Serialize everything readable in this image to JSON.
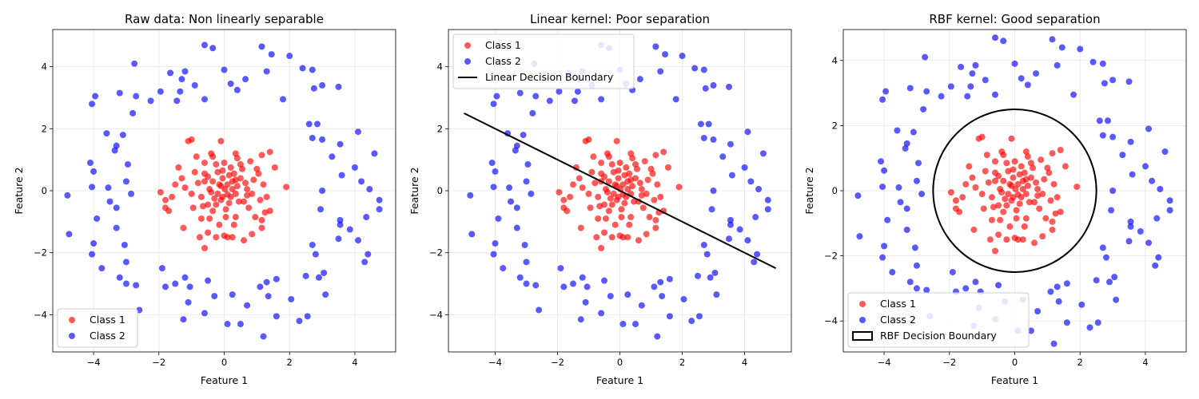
{
  "colors": {
    "class1": "#ff0000",
    "class2": "#0000ff",
    "boundary": "#000000",
    "grid": "#e6e6e6"
  },
  "legend_labels": {
    "class1": "Class 1",
    "class2": "Class 2"
  },
  "class1_points": [
    [
      0.02,
      0.05
    ],
    [
      0.1,
      -0.12
    ],
    [
      -0.15,
      0.2
    ],
    [
      0.25,
      0.3
    ],
    [
      -0.3,
      -0.25
    ],
    [
      0.35,
      -0.1
    ],
    [
      -0.05,
      0.4
    ],
    [
      0.4,
      0.15
    ],
    [
      -0.45,
      0.05
    ],
    [
      0.15,
      -0.4
    ],
    [
      0.3,
      0.55
    ],
    [
      -0.5,
      -0.45
    ],
    [
      0.6,
      -0.35
    ],
    [
      -0.2,
      0.6
    ],
    [
      0.5,
      0.4
    ],
    [
      -0.6,
      0.3
    ],
    [
      0.05,
      -0.6
    ],
    [
      -0.35,
      -0.65
    ],
    [
      0.7,
      0.05
    ],
    [
      -0.1,
      -0.3
    ],
    [
      0.0,
      0.9
    ],
    [
      0.2,
      0.75
    ],
    [
      -0.25,
      0.85
    ],
    [
      0.55,
      0.7
    ],
    [
      -0.6,
      0.55
    ],
    [
      -0.8,
      0.25
    ],
    [
      0.75,
      -0.55
    ],
    [
      0.35,
      -0.85
    ],
    [
      -0.45,
      -0.9
    ],
    [
      0.1,
      -1.5
    ],
    [
      -0.1,
      1.6
    ],
    [
      0.9,
      0.35
    ],
    [
      -1.0,
      -0.1
    ],
    [
      1.1,
      -0.3
    ],
    [
      -0.9,
      0.6
    ],
    [
      0.95,
      -0.85
    ],
    [
      -0.7,
      -0.9
    ],
    [
      1.2,
      0.2
    ],
    [
      -1.2,
      0.1
    ],
    [
      0.8,
      0.95
    ],
    [
      -0.85,
      1.1
    ],
    [
      -0.4,
      1.2
    ],
    [
      0.4,
      1.05
    ],
    [
      1.15,
      1.15
    ],
    [
      -1.1,
      1.6
    ],
    [
      -1.0,
      1.65
    ],
    [
      1.4,
      1.25
    ],
    [
      -1.4,
      0.75
    ],
    [
      1.55,
      0.75
    ],
    [
      1.25,
      -0.7
    ],
    [
      -1.25,
      -1.2
    ],
    [
      0.25,
      -1.5
    ],
    [
      -0.25,
      -1.5
    ],
    [
      0.0,
      -1.45
    ],
    [
      -0.5,
      -1.35
    ],
    [
      0.85,
      -1.4
    ],
    [
      -0.6,
      -1.85
    ],
    [
      1.15,
      -0.95
    ],
    [
      -0.65,
      -0.5
    ],
    [
      -1.3,
      0.4
    ],
    [
      1.9,
      0.12
    ],
    [
      -1.95,
      -0.05
    ],
    [
      -1.8,
      -0.55
    ],
    [
      -1.8,
      -0.3
    ],
    [
      1.4,
      -0.65
    ],
    [
      -1.6,
      -0.2
    ],
    [
      1.0,
      0.7
    ],
    [
      0.7,
      -0.15
    ],
    [
      -0.15,
      -1.1
    ],
    [
      0.6,
      -1.6
    ],
    [
      -0.75,
      -1.5
    ],
    [
      1.3,
      -0.2
    ],
    [
      -1.7,
      -0.65
    ],
    [
      1.15,
      -1.2
    ],
    [
      -1.5,
      0.2
    ],
    [
      0.35,
      1.2
    ],
    [
      -0.35,
      1.1
    ],
    [
      0.1,
      0.2
    ],
    [
      -0.2,
      -0.1
    ],
    [
      0.2,
      -0.2
    ],
    [
      -0.1,
      0.15
    ],
    [
      0.45,
      -0.35
    ],
    [
      -0.5,
      0.45
    ],
    [
      0.15,
      0.5
    ],
    [
      -0.25,
      -0.45
    ],
    [
      0.65,
      0.25
    ],
    [
      -0.7,
      -0.2
    ],
    [
      0.05,
      -0.85
    ],
    [
      -0.05,
      0.65
    ],
    [
      0.85,
      -0.1
    ],
    [
      -0.95,
      -0.55
    ],
    [
      1.05,
      0.55
    ],
    [
      0.3,
      -1.1
    ],
    [
      -0.6,
      0.9
    ],
    [
      0.5,
      0.85
    ],
    [
      -0.35,
      0.3
    ],
    [
      0.25,
      0.05
    ],
    [
      -0.05,
      -0.2
    ],
    [
      0.35,
      0.35
    ],
    [
      -0.4,
      -0.05
    ]
  ],
  "class2_points": [
    [
      -4.8,
      -0.15
    ],
    [
      -4.75,
      -1.4
    ],
    [
      -4.1,
      0.9
    ],
    [
      -4.0,
      0.62
    ],
    [
      -3.9,
      -0.9
    ],
    [
      -4.0,
      -1.7
    ],
    [
      -4.05,
      -2.05
    ],
    [
      -3.75,
      -2.5
    ],
    [
      -3.95,
      3.05
    ],
    [
      -4.05,
      2.8
    ],
    [
      -3.6,
      1.85
    ],
    [
      -3.55,
      0.1
    ],
    [
      -3.5,
      -0.35
    ],
    [
      -3.35,
      1.3
    ],
    [
      -3.3,
      1.45
    ],
    [
      -3.3,
      -0.55
    ],
    [
      -3.3,
      -1.2
    ],
    [
      -3.2,
      -2.8
    ],
    [
      -3.2,
      3.15
    ],
    [
      -3.1,
      1.8
    ],
    [
      -3.05,
      -1.75
    ],
    [
      -3.0,
      -2.3
    ],
    [
      -3.0,
      0.3
    ],
    [
      -3.0,
      -3.0
    ],
    [
      -2.95,
      0.85
    ],
    [
      -2.8,
      2.5
    ],
    [
      -2.75,
      4.1
    ],
    [
      -2.7,
      3.05
    ],
    [
      -2.7,
      -3.05
    ],
    [
      -2.6,
      -3.85
    ],
    [
      -2.25,
      2.9
    ],
    [
      -1.95,
      3.2
    ],
    [
      -1.9,
      -2.5
    ],
    [
      -1.8,
      -3.1
    ],
    [
      -1.65,
      3.8
    ],
    [
      -1.5,
      -3.0
    ],
    [
      -1.45,
      2.9
    ],
    [
      -1.35,
      3.2
    ],
    [
      -1.3,
      3.6
    ],
    [
      -1.2,
      3.85
    ],
    [
      -1.2,
      -2.8
    ],
    [
      -1.25,
      -4.15
    ],
    [
      -1.1,
      -3.6
    ],
    [
      -0.6,
      -3.95
    ],
    [
      -0.5,
      -2.9
    ],
    [
      -0.6,
      4.7
    ],
    [
      -0.35,
      4.6
    ],
    [
      -0.3,
      -3.4
    ],
    [
      -0.6,
      2.95
    ],
    [
      0.0,
      3.9
    ],
    [
      0.1,
      -4.3
    ],
    [
      0.2,
      3.45
    ],
    [
      0.25,
      -3.35
    ],
    [
      0.4,
      3.25
    ],
    [
      0.5,
      -4.3
    ],
    [
      0.65,
      3.6
    ],
    [
      0.7,
      -3.7
    ],
    [
      1.1,
      -3.1
    ],
    [
      1.15,
      4.65
    ],
    [
      1.3,
      -2.95
    ],
    [
      1.3,
      3.85
    ],
    [
      1.35,
      -3.4
    ],
    [
      1.45,
      4.4
    ],
    [
      1.6,
      -4.05
    ],
    [
      1.6,
      -2.85
    ],
    [
      1.8,
      2.95
    ],
    [
      2.05,
      -3.5
    ],
    [
      2.0,
      4.35
    ],
    [
      2.3,
      -4.2
    ],
    [
      2.4,
      3.95
    ],
    [
      2.5,
      -2.75
    ],
    [
      2.55,
      -4.05
    ],
    [
      2.6,
      2.15
    ],
    [
      2.7,
      1.7
    ],
    [
      2.7,
      3.9
    ],
    [
      2.75,
      3.3
    ],
    [
      2.7,
      -1.75
    ],
    [
      2.8,
      -2.05
    ],
    [
      2.85,
      2.15
    ],
    [
      2.9,
      -2.8
    ],
    [
      3.0,
      3.4
    ],
    [
      3.0,
      1.65
    ],
    [
      3.0,
      0.0
    ],
    [
      3.05,
      -2.65
    ],
    [
      3.1,
      -3.35
    ],
    [
      3.3,
      1.1
    ],
    [
      3.5,
      3.35
    ],
    [
      3.5,
      -1.55
    ],
    [
      3.55,
      1.5
    ],
    [
      3.55,
      -0.95
    ],
    [
      3.6,
      0.5
    ],
    [
      3.55,
      -1.1
    ],
    [
      3.85,
      -1.25
    ],
    [
      4.0,
      0.75
    ],
    [
      4.1,
      1.9
    ],
    [
      4.1,
      -1.6
    ],
    [
      4.2,
      0.3
    ],
    [
      4.3,
      -2.3
    ],
    [
      4.45,
      0.05
    ],
    [
      4.4,
      -2.05
    ],
    [
      4.6,
      1.2
    ],
    [
      4.75,
      -0.3
    ],
    [
      4.75,
      -0.6
    ],
    [
      -4.05,
      0.12
    ],
    [
      4.35,
      -0.85
    ],
    [
      1.2,
      -4.7
    ],
    [
      -1.05,
      -3.1
    ],
    [
      -2.85,
      -0.1
    ],
    [
      2.95,
      -0.6
    ],
    [
      -0.9,
      3.4
    ]
  ],
  "panels": [
    {
      "title": "Raw data: Non linearly separable",
      "xlabel": "Feature 1",
      "ylabel": "Feature 2",
      "xlim": [
        -5.25,
        5.25
      ],
      "ylim": [
        -5.2,
        5.2
      ],
      "xticks": [
        -4,
        -2,
        0,
        2,
        4
      ],
      "yticks": [
        -4,
        -2,
        0,
        2,
        4
      ],
      "tick_labels_x": [
        "−4",
        "−2",
        "0",
        "2",
        "4"
      ],
      "tick_labels_y": [
        "−4",
        "−2",
        "0",
        "2",
        "4"
      ],
      "boundary": null,
      "legend": {
        "placement": "lower-left",
        "items": [
          "Class 1",
          "Class 2"
        ]
      }
    },
    {
      "title": "Linear kernel: Poor separation",
      "xlabel": "Feature 1",
      "ylabel": "Feature 2",
      "xlim": [
        -5.5,
        5.5
      ],
      "ylim": [
        -5.2,
        5.2
      ],
      "xticks": [
        -4,
        -2,
        0,
        2,
        4
      ],
      "yticks": [
        -4,
        -2,
        0,
        2,
        4
      ],
      "tick_labels_x": [
        "−4",
        "−2",
        "0",
        "2",
        "4"
      ],
      "tick_labels_y": [
        "−4",
        "−2",
        "0",
        "2",
        "4"
      ],
      "boundary": {
        "type": "line",
        "x": [
          -5,
          5
        ],
        "y": [
          2.5,
          -2.5
        ],
        "label": "Linear Decision Boundary"
      },
      "legend": {
        "placement": "upper-left",
        "items": [
          "Class 1",
          "Class 2",
          "Linear Decision Boundary"
        ]
      }
    },
    {
      "title": "RBF kernel: Good separation",
      "xlabel": "Feature 1",
      "ylabel": "Feature 2",
      "xlim": [
        -5.25,
        5.25
      ],
      "ylim": [
        -4.95,
        4.95
      ],
      "xticks": [
        -4,
        -2,
        0,
        2,
        4
      ],
      "yticks": [
        -4,
        -2,
        0,
        2,
        4
      ],
      "tick_labels_x": [
        "−4",
        "−2",
        "0",
        "2",
        "4"
      ],
      "tick_labels_y": [
        "−4",
        "−2",
        "0",
        "2",
        "4"
      ],
      "boundary": {
        "type": "circle",
        "center": [
          0,
          0
        ],
        "radius": 2.5,
        "label": "RBF Decision Boundary"
      },
      "legend": {
        "placement": "lower-left",
        "items": [
          "Class 1",
          "Class 2",
          "RBF Decision Boundary"
        ]
      }
    }
  ],
  "chart_data": [
    {
      "type": "scatter",
      "title": "Raw data: Non linearly separable",
      "xlabel": "Feature 1",
      "ylabel": "Feature 2",
      "xlim": [
        -5.25,
        5.25
      ],
      "ylim": [
        -5.2,
        5.2
      ],
      "grid": true,
      "legend": "lower-left",
      "series": [
        {
          "name": "Class 1",
          "color": "#ff0000",
          "points_ref": "class1_points"
        },
        {
          "name": "Class 2",
          "color": "#0000ff",
          "points_ref": "class2_points"
        }
      ]
    },
    {
      "type": "scatter",
      "title": "Linear kernel: Poor separation",
      "xlabel": "Feature 1",
      "ylabel": "Feature 2",
      "xlim": [
        -5.5,
        5.5
      ],
      "ylim": [
        -5.2,
        5.2
      ],
      "grid": true,
      "legend": "upper-left",
      "series": [
        {
          "name": "Class 1",
          "color": "#ff0000",
          "points_ref": "class1_points"
        },
        {
          "name": "Class 2",
          "color": "#0000ff",
          "points_ref": "class2_points"
        },
        {
          "name": "Linear Decision Boundary",
          "type": "line",
          "x": [
            -5,
            5
          ],
          "y": [
            2.5,
            -2.5
          ]
        }
      ]
    },
    {
      "type": "scatter",
      "title": "RBF kernel: Good separation",
      "xlabel": "Feature 1",
      "ylabel": "Feature 2",
      "xlim": [
        -5.25,
        5.25
      ],
      "ylim": [
        -4.95,
        4.95
      ],
      "grid": true,
      "legend": "lower-left",
      "series": [
        {
          "name": "Class 1",
          "color": "#ff0000",
          "points_ref": "class1_points"
        },
        {
          "name": "Class 2",
          "color": "#0000ff",
          "points_ref": "class2_points"
        },
        {
          "name": "RBF Decision Boundary",
          "type": "circle",
          "center": [
            0,
            0
          ],
          "radius": 2.5
        }
      ]
    }
  ]
}
